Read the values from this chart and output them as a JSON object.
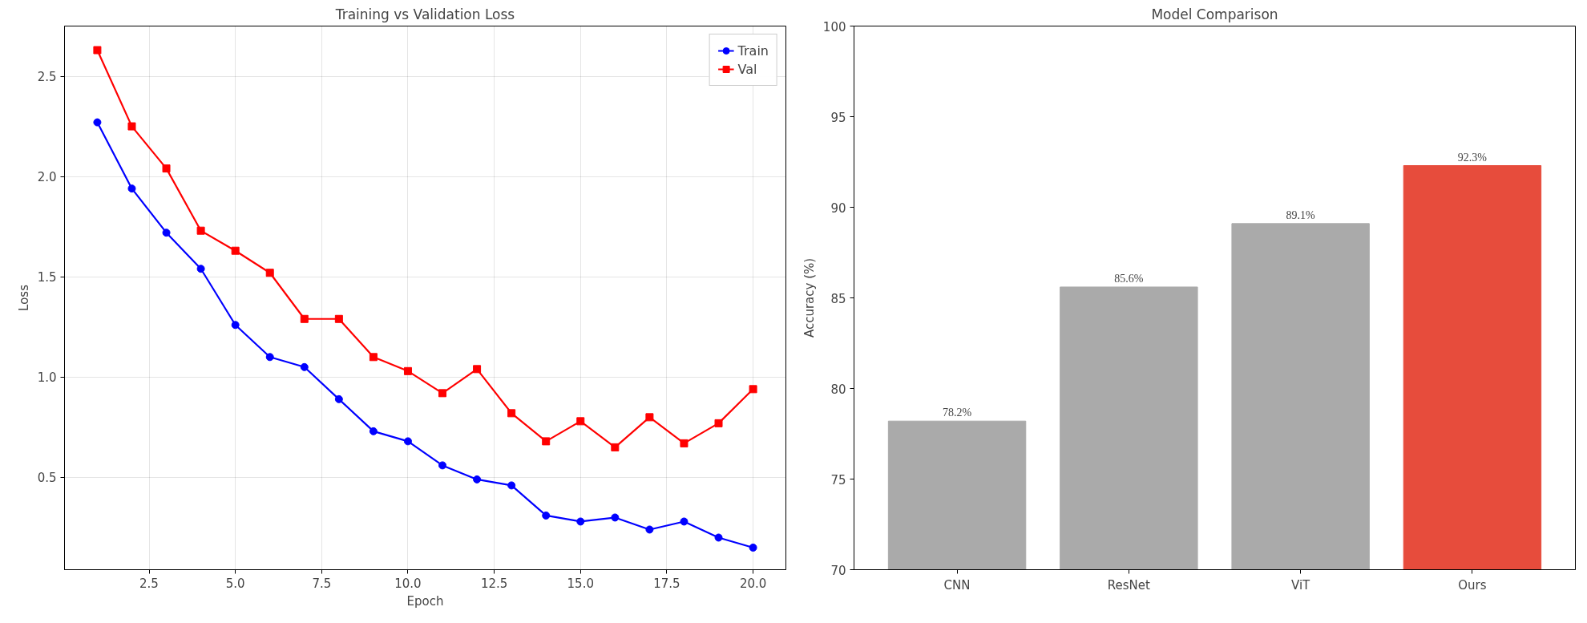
{
  "chart_data": [
    {
      "type": "line",
      "title": "Training vs Validation Loss",
      "xlabel": "Epoch",
      "ylabel": "Loss",
      "x": [
        1,
        2,
        3,
        4,
        5,
        6,
        7,
        8,
        9,
        10,
        11,
        12,
        13,
        14,
        15,
        16,
        17,
        18,
        19,
        20
      ],
      "xlim": [
        0.05,
        20.95
      ],
      "ylim": [
        0.04,
        2.75
      ],
      "xticks": [
        {
          "value": 2.5,
          "label": "2.5"
        },
        {
          "value": 5,
          "label": "5.0"
        },
        {
          "value": 7.5,
          "label": "7.5"
        },
        {
          "value": 10,
          "label": "10.0"
        },
        {
          "value": 12.5,
          "label": "12.5"
        },
        {
          "value": 15,
          "label": "15.0"
        },
        {
          "value": 17.5,
          "label": "17.5"
        },
        {
          "value": 20,
          "label": "20.0"
        }
      ],
      "yticks": [
        0.5,
        {
          "value": 1,
          "label": "1.0"
        },
        1.5,
        {
          "value": 2,
          "label": "2.0"
        },
        2.5
      ],
      "grid": true,
      "legend": "top right",
      "series": [
        {
          "name": "Train",
          "color": "#0000ff",
          "marker": "circle",
          "values": [
            2.27,
            1.94,
            1.72,
            1.54,
            1.26,
            1.1,
            1.05,
            0.89,
            0.73,
            0.68,
            0.56,
            0.49,
            0.46,
            0.31,
            0.28,
            0.3,
            0.24,
            0.28,
            0.2,
            0.15
          ]
        },
        {
          "name": "Val",
          "color": "#ff0000",
          "marker": "square",
          "values": [
            2.63,
            2.25,
            2.04,
            1.73,
            1.63,
            1.52,
            1.29,
            1.29,
            1.1,
            1.03,
            0.92,
            1.04,
            0.82,
            0.68,
            0.78,
            0.65,
            0.8,
            0.67,
            0.77,
            0.94
          ]
        }
      ]
    },
    {
      "type": "bar",
      "title": "Model Comparison",
      "ylabel": "Accuracy (%)",
      "categories": [
        "CNN",
        "ResNet",
        "ViT",
        "Ours"
      ],
      "values": [
        78.2,
        85.6,
        89.1,
        92.3
      ],
      "colors": [
        "#aaaaaa",
        "#aaaaaa",
        "#aaaaaa",
        "#e74c3c"
      ],
      "value_labels": [
        "78.2%",
        "85.6%",
        "89.1%",
        "92.3%"
      ],
      "ylim": [
        70,
        100
      ],
      "yticks": [
        70,
        75,
        80,
        85,
        90,
        95,
        100
      ],
      "grid": false
    }
  ]
}
